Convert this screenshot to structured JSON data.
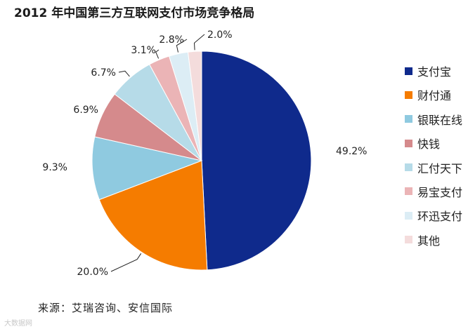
{
  "chart_data": {
    "type": "pie",
    "title": "2012 年中国第三方互联网支付市场竞争格局",
    "slices": [
      {
        "label": "支付宝",
        "value": 49.2,
        "value_label": "49.2%",
        "color": "#0f2a8c"
      },
      {
        "label": "财付通",
        "value": 20.0,
        "value_label": "20.0%",
        "color": "#f57c00"
      },
      {
        "label": "银联在线",
        "value": 9.3,
        "value_label": "9.3%",
        "color": "#8fcae0"
      },
      {
        "label": "快钱",
        "value": 6.9,
        "value_label": "6.9%",
        "color": "#d58a8c"
      },
      {
        "label": "汇付天下",
        "value": 6.7,
        "value_label": "6.7%",
        "color": "#b6dbe8"
      },
      {
        "label": "易宝支付",
        "value": 3.1,
        "value_label": "3.1%",
        "color": "#ebb4b6"
      },
      {
        "label": "环迅支付",
        "value": 2.8,
        "value_label": "2.8%",
        "color": "#dcedf5"
      },
      {
        "label": "其他",
        "value": 2.0,
        "value_label": "2.0%",
        "color": "#f4dcdc"
      }
    ],
    "start": "12 o'clock",
    "direction": "clockwise",
    "legend_position": "right"
  },
  "source": "来源：艾瑞咨询、安信国际",
  "watermark": "大数据网"
}
